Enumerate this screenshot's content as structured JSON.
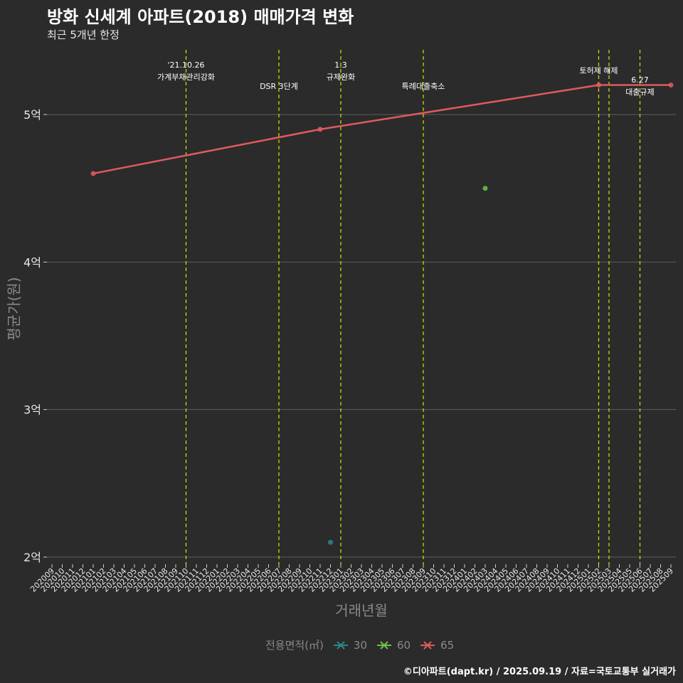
{
  "title": "방화 신세계 아파트(2018) 매매가격 변화",
  "subtitle": "최근 5개년 한정",
  "caption": "©디아파트(dapt.kr) / 2025.09.19 / 자료=국토교통부 실거래가",
  "colors": {
    "background": "#2b2b2b",
    "grid": "#5e5e5e",
    "vline": "#d8e000",
    "s30": "#2a8a8f",
    "s60": "#6cc24a",
    "s65": "#e05a5f"
  },
  "chart_data": {
    "type": "line",
    "xlabel": "거래년월",
    "ylabel": "평균가(원)",
    "x_ticks": [
      "202009",
      "202010",
      "202011",
      "202012",
      "202101",
      "202102",
      "202103",
      "202104",
      "202105",
      "202106",
      "202107",
      "202108",
      "202109",
      "202110",
      "202111",
      "202112",
      "202201",
      "202202",
      "202203",
      "202204",
      "202205",
      "202206",
      "202207",
      "202208",
      "202209",
      "202210",
      "202211",
      "202212",
      "202301",
      "202302",
      "202303",
      "202304",
      "202305",
      "202306",
      "202307",
      "202308",
      "202309",
      "202310",
      "202311",
      "202312",
      "202401",
      "202402",
      "202403",
      "202404",
      "202405",
      "202406",
      "202407",
      "202408",
      "202409",
      "202410",
      "202411",
      "202412",
      "202501",
      "202502",
      "202503",
      "202504",
      "202505",
      "202506",
      "202507",
      "202508",
      "202509"
    ],
    "y_ticks": [
      {
        "value": 2,
        "label": "2억"
      },
      {
        "value": 3,
        "label": "3억"
      },
      {
        "value": 4,
        "label": "4억"
      },
      {
        "value": 5,
        "label": "5억"
      }
    ],
    "ylim": [
      1.95,
      5.45
    ],
    "y_unit": "억",
    "legend_title": "전용면적(㎡)",
    "series": [
      {
        "name": "30",
        "points": [
          {
            "x": "202212",
            "y": 2.1
          }
        ]
      },
      {
        "name": "60",
        "points": [
          {
            "x": "202403",
            "y": 4.5
          }
        ]
      },
      {
        "name": "65",
        "points": [
          {
            "x": "202101",
            "y": 4.6
          },
          {
            "x": "202211",
            "y": 4.9
          },
          {
            "x": "202502",
            "y": 5.2
          },
          {
            "x": "202509",
            "y": 5.2
          }
        ],
        "trend": true
      }
    ],
    "events": [
      {
        "x": "202110",
        "label_lines": [
          "'21.10.26",
          "가계부채관리강화"
        ],
        "row": 0
      },
      {
        "x": "202207",
        "label_lines": [
          "DSR 3단계"
        ],
        "row": 1
      },
      {
        "x": "202301",
        "label_lines": [
          "1.3",
          "규제완화"
        ],
        "row": 0
      },
      {
        "x": "202309",
        "label_lines": [
          "특례대출축소"
        ],
        "row": 1
      },
      {
        "x": "202502",
        "label_lines": [
          "토허제 해제"
        ],
        "row": 0
      },
      {
        "x": "202503",
        "label_lines": [],
        "row": 0
      },
      {
        "x": "202506",
        "label_lines": [
          "6.27",
          "대출규제"
        ],
        "row": 1
      }
    ]
  }
}
